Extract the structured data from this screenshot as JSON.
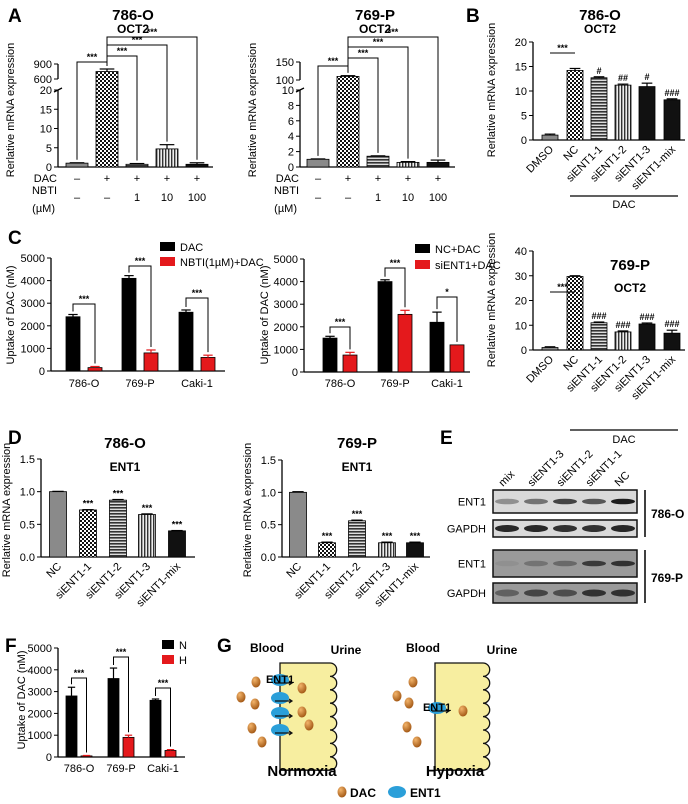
{
  "panel_labels": [
    "A",
    "B",
    "C",
    "D",
    "E",
    "F",
    "G"
  ],
  "chart_data": [
    {
      "id": "A1",
      "type": "bar",
      "title": "786-O",
      "subtitle": "OCT2",
      "ylabel": "Rerlative mRNA expression",
      "yticks": [
        0,
        5,
        10,
        15,
        20,
        600,
        900
      ],
      "ylim": [
        0,
        900
      ],
      "axis_break": [
        20,
        600
      ],
      "values": [
        1,
        750,
        0.7,
        4.7,
        0.7
      ],
      "errors": [
        0.1,
        50,
        0.2,
        1.1,
        0.4
      ],
      "rows": [
        {
          "label": "DAC",
          "values": [
            "–",
            "+",
            "+",
            "+",
            "+"
          ]
        },
        {
          "label": "NBTI",
          "values": [
            "–",
            "–",
            "1",
            "10",
            "100"
          ]
        }
      ],
      "unit_label": "(µM)",
      "significance": [
        {
          "a": 1,
          "b": 0,
          "label": "***"
        },
        {
          "a": 1,
          "b": 2,
          "label": "***"
        },
        {
          "a": 1,
          "b": 3,
          "label": "***"
        },
        {
          "a": 1,
          "b": 4,
          "label": "***"
        }
      ]
    },
    {
      "id": "A2",
      "type": "bar",
      "title": "769-P",
      "subtitle": "OCT2",
      "ylabel": "Rerlative mRNA expression",
      "yticks": [
        0,
        2,
        4,
        6,
        8,
        10,
        100,
        150
      ],
      "ylim": [
        0,
        150
      ],
      "axis_break": [
        10,
        100
      ],
      "values": [
        1,
        110,
        1.4,
        0.6,
        0.6
      ],
      "errors": [
        0.05,
        2,
        0.05,
        0.1,
        0.3
      ],
      "rows": [
        {
          "label": "DAC",
          "values": [
            "–",
            "+",
            "+",
            "+",
            "+"
          ]
        },
        {
          "label": "NBTI",
          "values": [
            "–",
            "–",
            "1",
            "10",
            "100"
          ]
        }
      ],
      "unit_label": "(µM)",
      "significance": [
        {
          "a": 1,
          "b": 0,
          "label": "***"
        },
        {
          "a": 1,
          "b": 2,
          "label": "***"
        },
        {
          "a": 1,
          "b": 3,
          "label": "***"
        },
        {
          "a": 1,
          "b": 4,
          "label": "***"
        }
      ]
    },
    {
      "id": "B1",
      "type": "bar",
      "title": "786-O",
      "subtitle": "OCT2",
      "ylabel": "Rerlative mRNA expression",
      "yticks": [
        0,
        5,
        10,
        15,
        20
      ],
      "ylim": [
        0,
        20
      ],
      "categories": [
        "DMSO",
        "NC",
        "siENT1-1",
        "siENT1-2",
        "siENT1-3",
        "siENT1-mix"
      ],
      "values": [
        1,
        14.2,
        12.7,
        11.2,
        10.9,
        8.2
      ],
      "errors": [
        0.2,
        0.4,
        0.2,
        0.2,
        0.7,
        0.2
      ],
      "bar_labels": [
        "",
        "",
        "#",
        "##",
        "#",
        "###"
      ],
      "group_label": "DAC",
      "significance": [
        {
          "a": 0,
          "b": 1,
          "label": "***"
        }
      ]
    },
    {
      "id": "B2",
      "type": "bar",
      "title": "769-P",
      "subtitle": "OCT2",
      "ylabel": "Rerlative mRNA expression",
      "yticks": [
        0,
        10,
        20,
        30,
        40
      ],
      "ylim": [
        0,
        40
      ],
      "categories": [
        "DMSO",
        "NC",
        "siENT1-1",
        "siENT1-2",
        "siENT1-3",
        "siENT1-mix"
      ],
      "values": [
        1,
        29.7,
        11,
        7.3,
        10.5,
        6.8
      ],
      "errors": [
        0.3,
        0.3,
        0.3,
        0.4,
        0.4,
        1.2
      ],
      "bar_labels": [
        "",
        "",
        "###",
        "###",
        "###",
        "###"
      ],
      "group_label": "DAC",
      "significance": [
        {
          "a": 0,
          "b": 1,
          "label": "***"
        }
      ]
    },
    {
      "id": "C1",
      "type": "bar",
      "ylabel": "Uptake of DAC (nM)",
      "yticks": [
        0,
        1000,
        2000,
        3000,
        4000,
        5000
      ],
      "ylim": [
        0,
        5000
      ],
      "categories": [
        "786-O",
        "769-P",
        "Caki-1"
      ],
      "series": [
        {
          "name": "DAC",
          "color": "#000000",
          "values": [
            2400,
            4100,
            2600
          ],
          "errors": [
            100,
            120,
            100
          ]
        },
        {
          "name": "NBTI(1µM)+DAC",
          "color": "#e4191c",
          "values": [
            150,
            800,
            600
          ],
          "errors": [
            50,
            130,
            100
          ]
        }
      ],
      "legend": "top-right",
      "significance": [
        {
          "a": 0,
          "b": 1,
          "label": "***"
        },
        {
          "a": 2,
          "b": 3,
          "label": "***"
        },
        {
          "a": 4,
          "b": 5,
          "label": "***"
        }
      ]
    },
    {
      "id": "C2",
      "type": "bar",
      "ylabel": "Uptake of DAC (nM)",
      "yticks": [
        0,
        1000,
        2000,
        3000,
        4000,
        5000
      ],
      "ylim": [
        0,
        5000
      ],
      "categories": [
        "786-O",
        "769-P",
        "Caki-1"
      ],
      "series": [
        {
          "name": "NC+DAC",
          "color": "#000000",
          "values": [
            1500,
            4000,
            2200
          ],
          "errors": [
            80,
            80,
            450
          ]
        },
        {
          "name": "siENT1+DAC",
          "color": "#e4191c",
          "values": [
            750,
            2550,
            1200
          ],
          "errors": [
            120,
            180,
            0
          ]
        }
      ],
      "legend": "top-right",
      "significance": [
        {
          "a": 0,
          "b": 1,
          "label": "***"
        },
        {
          "a": 2,
          "b": 3,
          "label": "***"
        },
        {
          "a": 4,
          "b": 5,
          "label": "*"
        }
      ]
    },
    {
      "id": "D1",
      "type": "bar",
      "title": "786-O",
      "subtitle": "ENT1",
      "ylabel": "Rerlative mRNA expression",
      "yticks": [
        "0.0",
        "0.5",
        "1.0",
        "1.5"
      ],
      "ylim": [
        0,
        1.5
      ],
      "categories": [
        "NC",
        "siENT1-1",
        "siENT1-2",
        "siENT1-3",
        "siENT1-mix"
      ],
      "values": [
        1,
        0.72,
        0.87,
        0.65,
        0.4
      ],
      "errors": [
        0.005,
        0.005,
        0.01,
        0.01,
        0.005
      ],
      "bar_labels": [
        "",
        "***",
        "***",
        "***",
        "***"
      ]
    },
    {
      "id": "D2",
      "type": "bar",
      "title": "769-P",
      "subtitle": "ENT1",
      "ylabel": "Rerlative mRNA expression",
      "yticks": [
        "0.0",
        "0.5",
        "1.0",
        "1.5"
      ],
      "ylim": [
        0,
        1.5
      ],
      "categories": [
        "NC",
        "siENT1-1",
        "siENT1-2",
        "siENT1-3",
        "siENT1-mix"
      ],
      "values": [
        1,
        0.22,
        0.56,
        0.22,
        0.22
      ],
      "errors": [
        0.01,
        0.01,
        0.01,
        0.01,
        0.01
      ],
      "bar_labels": [
        "",
        "***",
        "***",
        "***",
        "***"
      ]
    },
    {
      "id": "F",
      "type": "bar",
      "ylabel": "Uptake of DAC (nM)",
      "yticks": [
        0,
        1000,
        2000,
        3000,
        4000,
        5000
      ],
      "ylim": [
        0,
        5000
      ],
      "categories": [
        "786-O",
        "769-P",
        "Caki-1"
      ],
      "series": [
        {
          "name": "N",
          "color": "#000000",
          "values": [
            2800,
            3600,
            2600
          ],
          "errors": [
            400,
            480,
            60
          ]
        },
        {
          "name": "H",
          "color": "#e4191c",
          "values": [
            50,
            900,
            300
          ],
          "errors": [
            20,
            100,
            40
          ]
        }
      ],
      "legend": "top-right",
      "significance": [
        {
          "a": 0,
          "b": 1,
          "label": "***"
        },
        {
          "a": 2,
          "b": 3,
          "label": "***"
        },
        {
          "a": 4,
          "b": 5,
          "label": "***"
        }
      ]
    }
  ],
  "western_blot": {
    "lanes": [
      "mix",
      "siENT1-3",
      "siENT1-2",
      "siENT1-1",
      "NC"
    ],
    "rows": [
      {
        "label": "ENT1",
        "band_intensity": [
          0.35,
          0.5,
          0.75,
          0.65,
          0.95
        ]
      },
      {
        "label": "GAPDH",
        "band_intensity": [
          0.9,
          0.9,
          0.85,
          0.85,
          0.9
        ]
      },
      {
        "label": "ENT1",
        "band_intensity": [
          0.35,
          0.5,
          0.55,
          0.8,
          0.85
        ]
      },
      {
        "label": "GAPDH",
        "band_intensity": [
          0.6,
          0.75,
          0.7,
          0.85,
          0.85
        ]
      }
    ],
    "groups": [
      "786-O",
      "769-P"
    ]
  },
  "schematic": {
    "normoxia": {
      "blood": "Blood",
      "urine": "Urine",
      "label": "Normoxia",
      "ent1_tag": "ENT1"
    },
    "hypoxia": {
      "blood": "Blood",
      "urine": "Urine",
      "label": "Hypoxia",
      "ent1_tag": "ENT1"
    },
    "legend": [
      {
        "label": "DAC",
        "color": "#b8661a"
      },
      {
        "label": "ENT1",
        "color": "#2b9fd9"
      }
    ]
  }
}
